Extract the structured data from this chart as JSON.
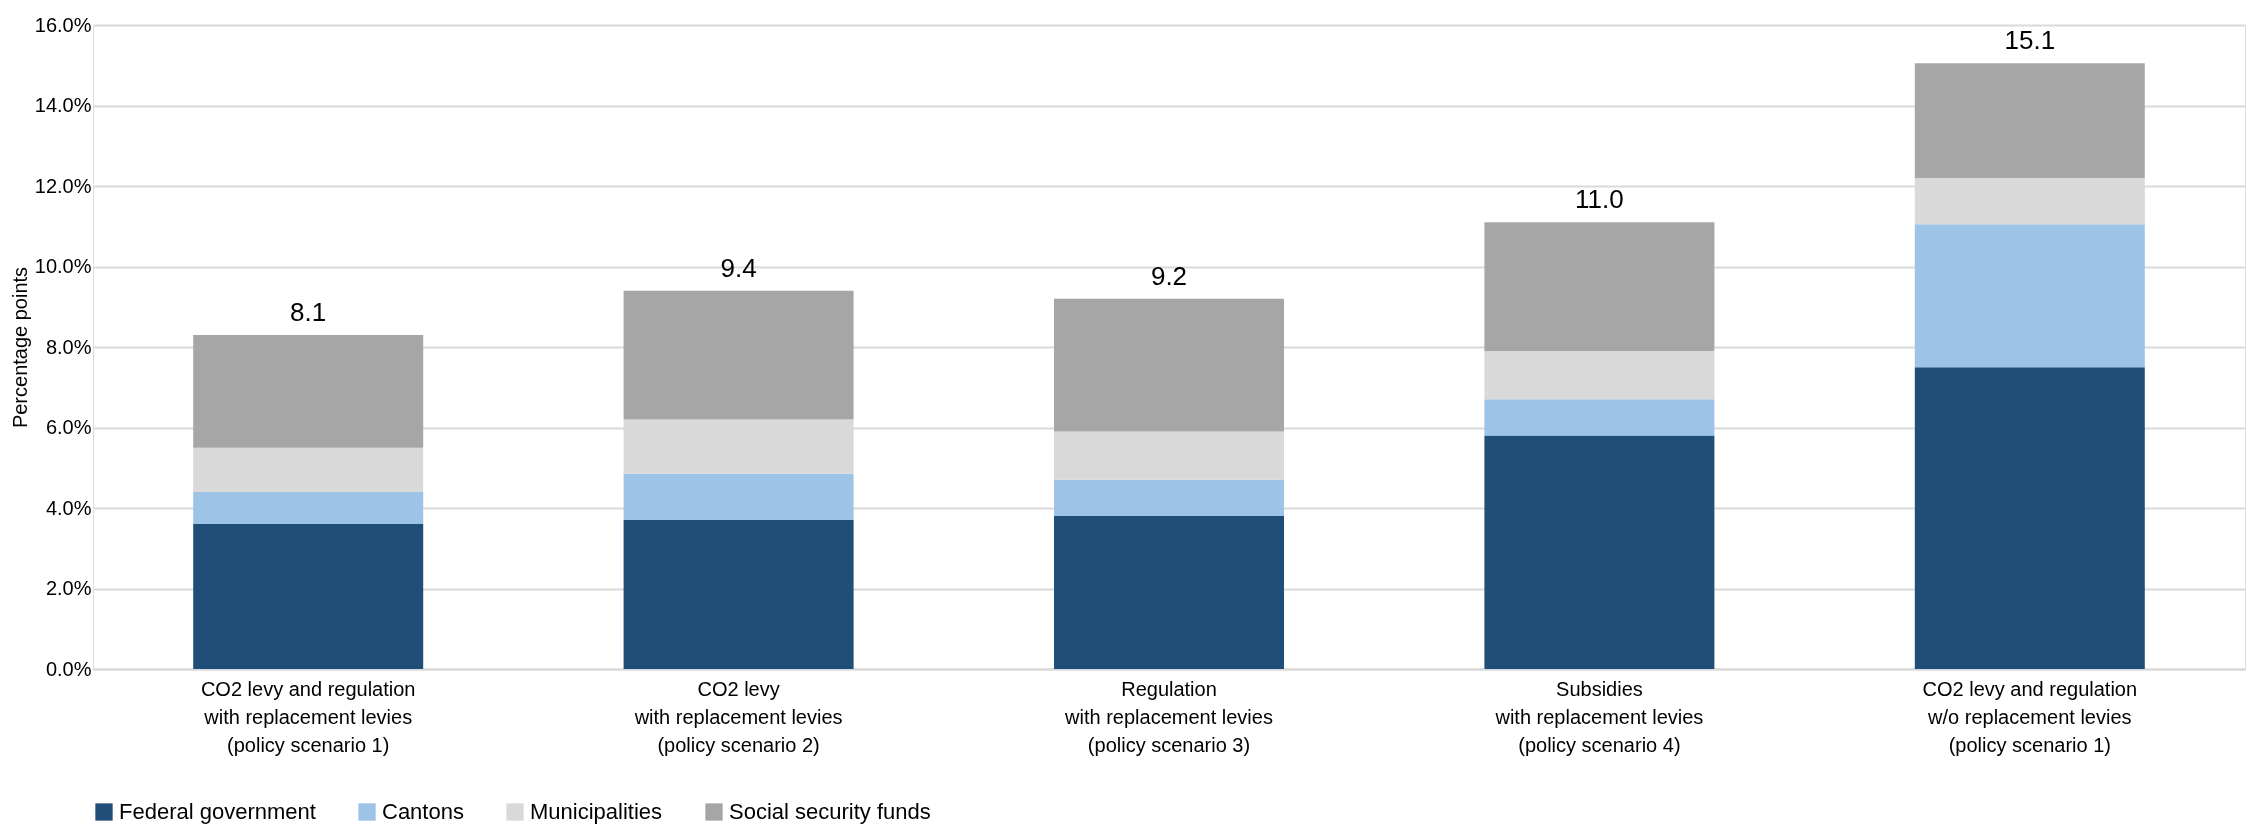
{
  "chart_data": {
    "type": "bar",
    "stacked": true,
    "ylabel": "Percentage points",
    "categories": [
      "CO2 levy and regulation\nwith replacement levies\n\n(policy scenario 1)",
      "CO2 levy\nwith replacement levies\n\n(policy scenario 2)",
      "Regulation\nwith replacement levies\n\n(policy scenario 3)",
      "Subsidies\nwith replacement levies\n\n(policy scenario 4)",
      "CO2 levy and regulation\nw/o replacement levies\n\n(policy scenario 1)"
    ],
    "series": [
      {
        "name": "Federal government",
        "color": "#1f4e79",
        "values": [
          3.6,
          3.7,
          3.8,
          5.8,
          7.5
        ]
      },
      {
        "name": "Cantons",
        "color": "#9dc3e6",
        "values": [
          0.8,
          1.15,
          0.9,
          0.9,
          3.55
        ]
      },
      {
        "name": "Municipalities",
        "color": "#d9d9d9",
        "values": [
          1.1,
          1.35,
          1.2,
          1.2,
          1.15
        ]
      },
      {
        "name": "Social security funds",
        "color": "#a6a6a6",
        "values": [
          2.8,
          3.2,
          3.3,
          3.2,
          2.85
        ]
      }
    ],
    "totals": [
      "8.1",
      "9.4",
      "9.2",
      "11.0",
      "15.1"
    ],
    "ylim": [
      0,
      16
    ],
    "yticks": [
      {
        "value": 0,
        "label": "0.0%"
      },
      {
        "value": 2,
        "label": "2.0%"
      },
      {
        "value": 4,
        "label": "4.0%"
      },
      {
        "value": 6,
        "label": "6.0%"
      },
      {
        "value": 8,
        "label": "8.0%"
      },
      {
        "value": 10,
        "label": "10.0%"
      },
      {
        "value": 12,
        "label": "12.0%"
      },
      {
        "value": 14,
        "label": "14.0%"
      },
      {
        "value": 16,
        "label": "16.0%"
      }
    ],
    "grid": "y",
    "legend": "bottom"
  }
}
